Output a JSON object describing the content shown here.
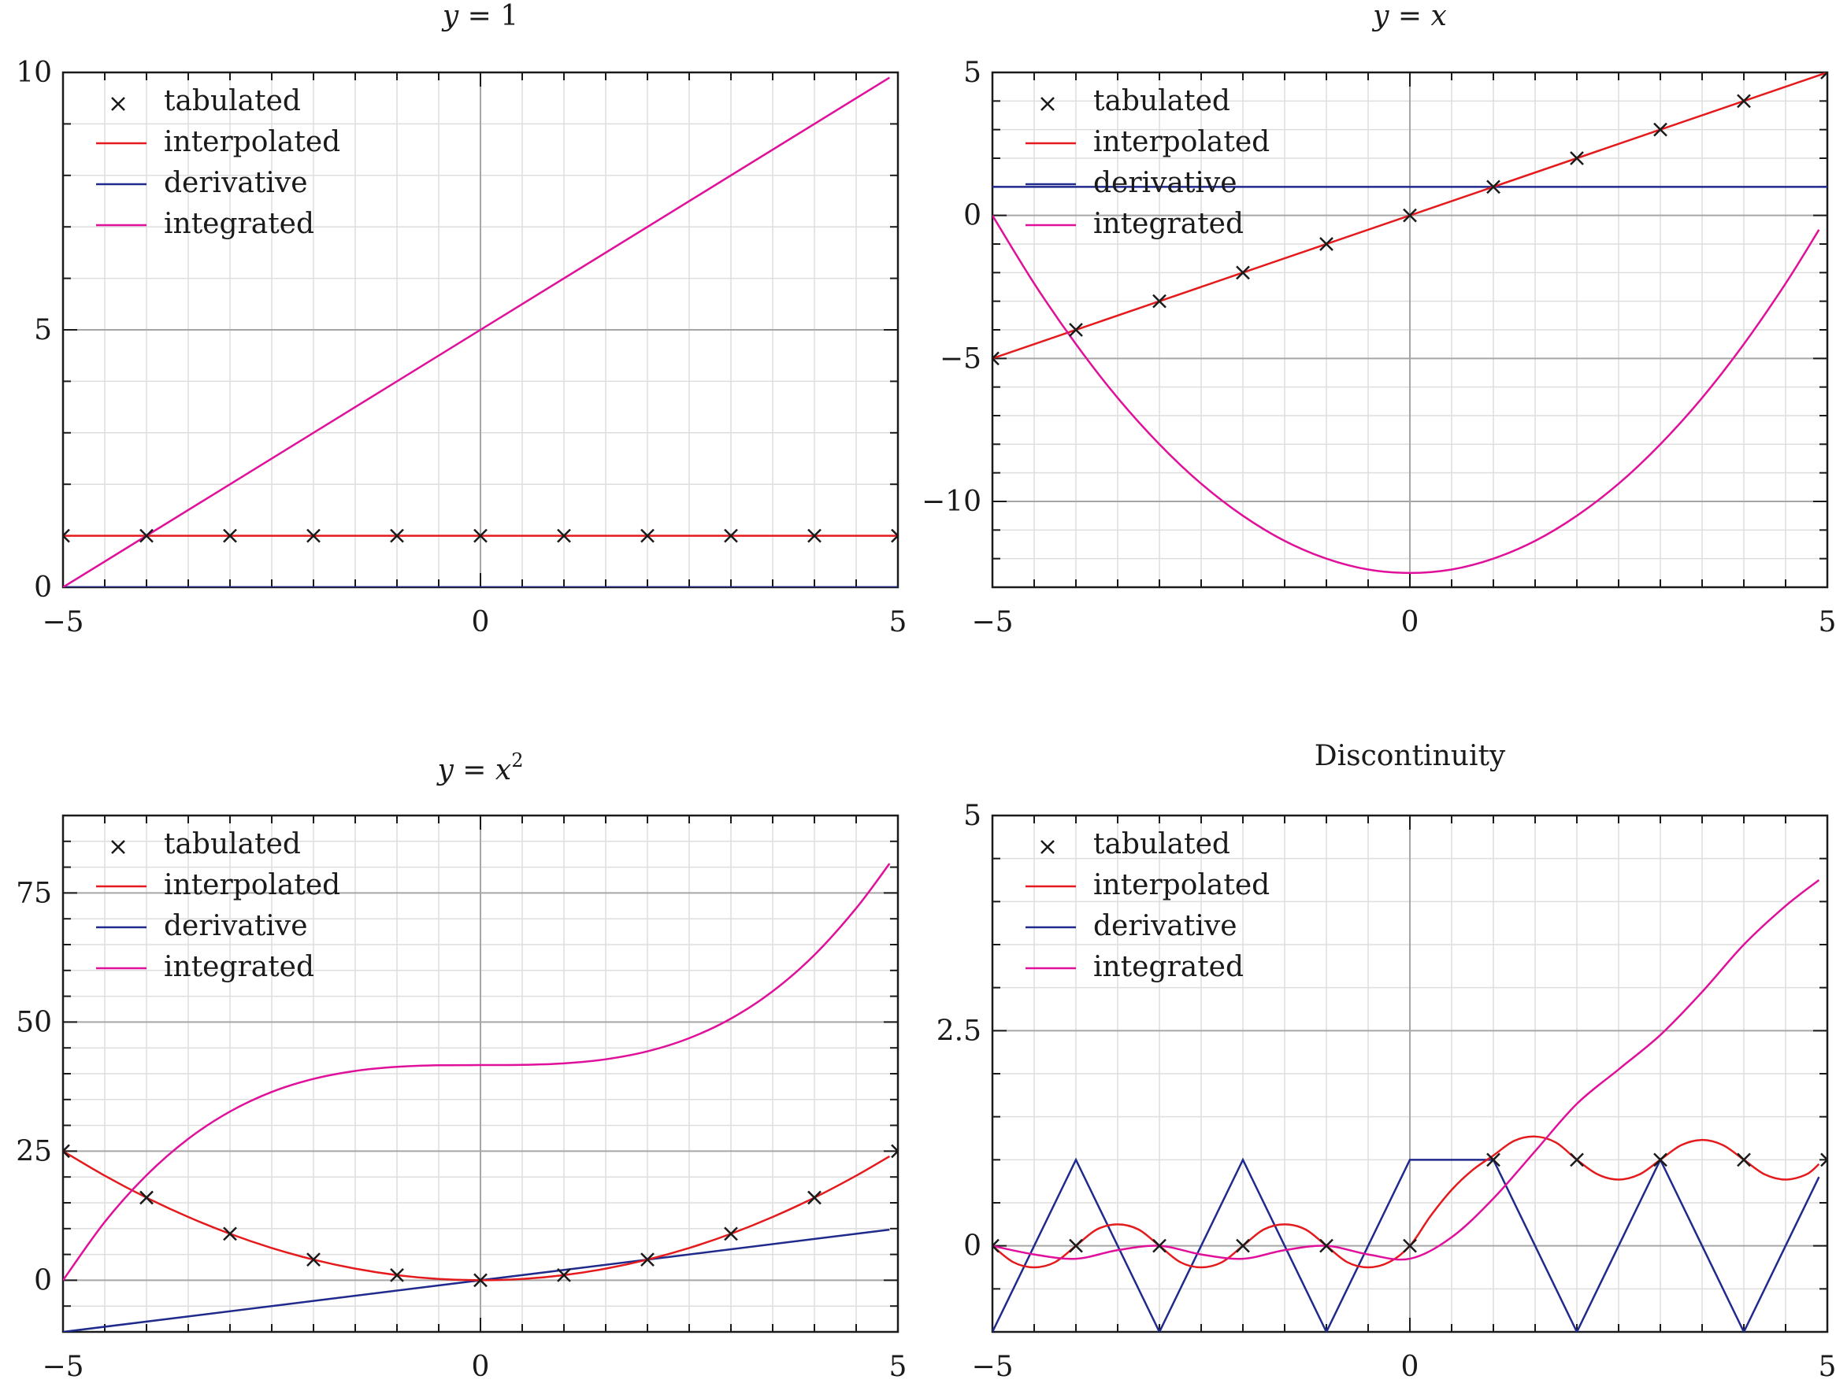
{
  "colors": {
    "tabulated": "#1a1a1a",
    "interpolated": "#e41a1c",
    "derivative": "#1f2a8c",
    "integrated": "#e0109a",
    "grid_major": "#a6a6a6",
    "grid_minor": "#dedede",
    "frame": "#1a1a1a"
  },
  "legend_labels": [
    "tabulated",
    "interpolated",
    "derivative",
    "integrated"
  ],
  "chart_data": [
    {
      "type": "line",
      "title": "y = 1",
      "title_parts": [
        "y",
        " = 1"
      ],
      "legend": [
        "tabulated",
        "interpolated",
        "derivative",
        "integrated"
      ],
      "legend_position": "top-left",
      "xlim": [
        -5,
        5
      ],
      "ylim": [
        0,
        10
      ],
      "xticks": [
        -5,
        0,
        5
      ],
      "xtick_labels": [
        "−5",
        "0",
        "5"
      ],
      "yticks": [
        0,
        5,
        10
      ],
      "ytick_labels": [
        "0",
        "5",
        "10"
      ],
      "series": [
        {
          "name": "tabulated",
          "style": "markers",
          "x": [
            -5,
            -4,
            -3,
            -2,
            -1,
            0,
            1,
            2,
            3,
            4,
            5
          ],
          "y": [
            1,
            1,
            1,
            1,
            1,
            1,
            1,
            1,
            1,
            1,
            1
          ]
        },
        {
          "name": "interpolated",
          "style": "line",
          "x": [
            -5,
            5
          ],
          "y": [
            1,
            1
          ]
        },
        {
          "name": "derivative",
          "style": "line",
          "x": [
            -5,
            5
          ],
          "y": [
            0,
            0
          ]
        },
        {
          "name": "integrated",
          "style": "line",
          "x": [
            -5,
            4.9
          ],
          "y": [
            0,
            9.9
          ]
        }
      ]
    },
    {
      "type": "line",
      "title": "y = x",
      "title_parts": [
        "y",
        " = ",
        "x"
      ],
      "legend": [
        "tabulated",
        "interpolated",
        "derivative",
        "integrated"
      ],
      "legend_position": "top-left",
      "xlim": [
        -5,
        5
      ],
      "ylim": [
        -13,
        5
      ],
      "xticks": [
        -5,
        0,
        5
      ],
      "xtick_labels": [
        "−5",
        "0",
        "5"
      ],
      "yticks": [
        -10,
        -5,
        0,
        5
      ],
      "ytick_labels": [
        "−10",
        "−5",
        "0",
        "5"
      ],
      "series": [
        {
          "name": "tabulated",
          "style": "markers",
          "x": [
            -5,
            -4,
            -3,
            -2,
            -1,
            0,
            1,
            2,
            3,
            4,
            5
          ],
          "y": [
            -5,
            -4,
            -3,
            -2,
            -1,
            0,
            1,
            2,
            3,
            4,
            5
          ]
        },
        {
          "name": "interpolated",
          "style": "line",
          "x": [
            -5,
            5
          ],
          "y": [
            -5,
            5
          ]
        },
        {
          "name": "derivative",
          "style": "line",
          "x": [
            -5,
            5
          ],
          "y": [
            1,
            1
          ]
        },
        {
          "name": "integrated",
          "style": "line",
          "x": [
            -5,
            -4.5,
            -4,
            -3.5,
            -3,
            -2.5,
            -2,
            -1.5,
            -1,
            -0.5,
            0,
            0.5,
            1,
            1.5,
            2,
            2.5,
            3,
            3.5,
            4,
            4.5,
            4.9
          ],
          "y": [
            0,
            -2.38,
            -4.5,
            -6.38,
            -8,
            -9.38,
            -10.5,
            -11.38,
            -12,
            -12.38,
            -12.5,
            -12.38,
            -12,
            -11.38,
            -10.5,
            -9.38,
            -8,
            -6.38,
            -4.5,
            -2.38,
            -0.5
          ]
        }
      ]
    },
    {
      "type": "line",
      "title": "y = x²",
      "title_parts": [
        "y",
        " = ",
        "x",
        "2"
      ],
      "legend": [
        "tabulated",
        "interpolated",
        "derivative",
        "integrated"
      ],
      "legend_position": "top-left",
      "xlim": [
        -5,
        5
      ],
      "ylim": [
        -10,
        90
      ],
      "xticks": [
        -5,
        0,
        5
      ],
      "xtick_labels": [
        "−5",
        "0",
        "5"
      ],
      "yticks": [
        0,
        25,
        50,
        75
      ],
      "ytick_labels": [
        "0",
        "25",
        "50",
        "75"
      ],
      "series": [
        {
          "name": "tabulated",
          "style": "markers",
          "x": [
            -5,
            -4,
            -3,
            -2,
            -1,
            0,
            1,
            2,
            3,
            4,
            5
          ],
          "y": [
            25,
            16,
            9,
            4,
            1,
            0,
            1,
            4,
            9,
            16,
            25
          ]
        },
        {
          "name": "interpolated",
          "style": "line",
          "x": [
            -5,
            -4.5,
            -4,
            -3.5,
            -3,
            -2.5,
            -2,
            -1.5,
            -1,
            -0.5,
            0,
            0.5,
            1,
            1.5,
            2,
            2.5,
            3,
            3.5,
            4,
            4.5,
            4.9
          ],
          "y": [
            25,
            20.25,
            16,
            12.25,
            9,
            6.25,
            4,
            2.25,
            1,
            0.25,
            0,
            0.25,
            1,
            2.25,
            4,
            6.25,
            9,
            12.25,
            16,
            20.25,
            24.01
          ]
        },
        {
          "name": "derivative",
          "style": "line",
          "x": [
            -5,
            4.9
          ],
          "y": [
            -10,
            9.8
          ]
        },
        {
          "name": "integrated",
          "style": "line",
          "x": [
            -5,
            -4.5,
            -4,
            -3.5,
            -3,
            -2.5,
            -2,
            -1.5,
            -1,
            -0.5,
            0,
            0.5,
            1,
            1.5,
            2,
            2.5,
            3,
            3.5,
            4,
            4.5,
            4.9
          ],
          "y": [
            0,
            11.29,
            20.33,
            27.38,
            32.67,
            36.46,
            39,
            40.54,
            41.33,
            41.63,
            41.67,
            41.71,
            42,
            42.79,
            44.33,
            46.88,
            50.67,
            55.96,
            63,
            72.04,
            80.7
          ]
        }
      ]
    },
    {
      "type": "line",
      "title": "Discontinuity",
      "title_parts": [
        "Discontinuity"
      ],
      "legend": [
        "tabulated",
        "interpolated",
        "derivative",
        "integrated"
      ],
      "legend_position": "top-left",
      "xlim": [
        -5,
        5
      ],
      "ylim": [
        -1,
        5
      ],
      "xticks": [
        -5,
        0,
        5
      ],
      "xtick_labels": [
        "−5",
        "0",
        "5"
      ],
      "yticks": [
        0,
        2.5,
        5
      ],
      "ytick_labels": [
        "0",
        "2.5",
        "5"
      ],
      "series": [
        {
          "name": "tabulated",
          "style": "markers",
          "x": [
            -5,
            -4,
            -3,
            -2,
            -1,
            0,
            1,
            2,
            3,
            4,
            5
          ],
          "y": [
            0,
            0,
            0,
            0,
            0,
            0,
            1,
            1,
            1,
            1,
            1
          ]
        },
        {
          "name": "interpolated",
          "style": "line",
          "x": [
            -5,
            -4.75,
            -4.5,
            -4.25,
            -4,
            -3.75,
            -3.5,
            -3.25,
            -3,
            -2.75,
            -2.5,
            -2.25,
            -2,
            -1.75,
            -1.5,
            -1.25,
            -1,
            -0.75,
            -0.5,
            -0.25,
            0,
            0.25,
            0.5,
            0.75,
            1,
            1.25,
            1.5,
            1.75,
            2,
            2.25,
            2.5,
            2.75,
            3,
            3.25,
            3.5,
            3.75,
            4,
            4.25,
            4.5,
            4.75,
            4.9
          ],
          "y": [
            0,
            -0.19,
            -0.25,
            -0.19,
            0,
            0.19,
            0.25,
            0.19,
            0,
            -0.19,
            -0.25,
            -0.19,
            0,
            0.19,
            0.25,
            0.19,
            0,
            -0.19,
            -0.25,
            -0.19,
            0,
            0.35,
            0.65,
            0.88,
            1.05,
            1.22,
            1.27,
            1.2,
            1,
            0.83,
            0.77,
            0.83,
            1,
            1.17,
            1.23,
            1.17,
            1,
            0.83,
            0.77,
            0.83,
            0.95
          ]
        },
        {
          "name": "derivative",
          "style": "line",
          "x": [
            -5,
            -4,
            -3,
            -2,
            -1,
            0,
            1,
            2,
            3,
            4,
            4.9
          ],
          "y": [
            -1,
            1,
            -1,
            1,
            -1,
            1,
            1,
            -1,
            1,
            -1,
            0.8
          ]
        },
        {
          "name": "integrated",
          "style": "line",
          "x": [
            -5,
            -4.5,
            -4,
            -3.5,
            -3,
            -2.5,
            -2,
            -1.5,
            -1,
            -0.5,
            0,
            0.5,
            1,
            1.5,
            2,
            2.5,
            3,
            3.5,
            4,
            4.5,
            4.9
          ],
          "y": [
            0,
            -0.1,
            -0.15,
            -0.05,
            0,
            -0.1,
            -0.15,
            -0.05,
            0,
            -0.1,
            -0.15,
            0.1,
            0.55,
            1.1,
            1.65,
            2.05,
            2.45,
            2.95,
            3.5,
            3.95,
            4.25
          ]
        }
      ]
    }
  ]
}
